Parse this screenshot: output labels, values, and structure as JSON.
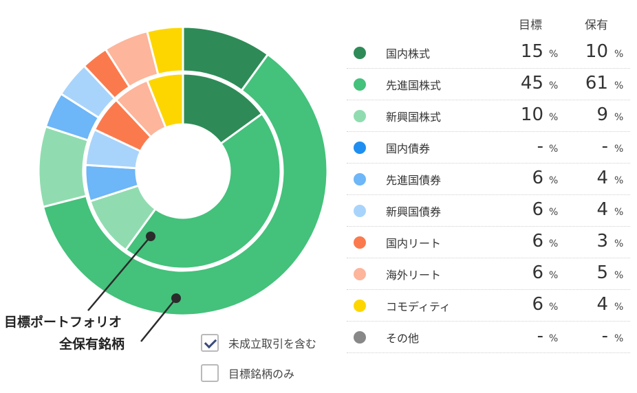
{
  "labels": {
    "target": "目標ポートフォリオ",
    "holdings": "全保有銘柄"
  },
  "options": [
    {
      "label": "未成立取引を含む",
      "checked": true
    },
    {
      "label": "目標銘柄のみ",
      "checked": false
    }
  ],
  "legend": {
    "col_target": "目標",
    "col_holding": "保有",
    "percent_unit": "%"
  },
  "chart_data": {
    "type": "pie",
    "categories": [
      "国内株式",
      "先進国株式",
      "新興国株式",
      "国内債券",
      "先進国債券",
      "新興国債券",
      "国内リート",
      "海外リート",
      "コモディティ",
      "その他"
    ],
    "colors": [
      "#2e8b57",
      "#44c17b",
      "#90dcb0",
      "#1f8ef1",
      "#6db6f7",
      "#a8d4fb",
      "#fb7a4d",
      "#fdb59b",
      "#fdd600",
      "#888888"
    ],
    "series": [
      {
        "name": "目標ポートフォリオ",
        "values": [
          15,
          45,
          10,
          0,
          6,
          6,
          6,
          6,
          6,
          0
        ],
        "display": [
          "15",
          "45",
          "10",
          "-",
          "6",
          "6",
          "6",
          "6",
          "6",
          "-"
        ]
      },
      {
        "name": "全保有銘柄",
        "values": [
          10,
          61,
          9,
          0,
          4,
          4,
          3,
          5,
          4,
          0
        ],
        "display": [
          "10",
          "61",
          "9",
          "-",
          "4",
          "4",
          "3",
          "5",
          "4",
          "-"
        ]
      }
    ]
  }
}
